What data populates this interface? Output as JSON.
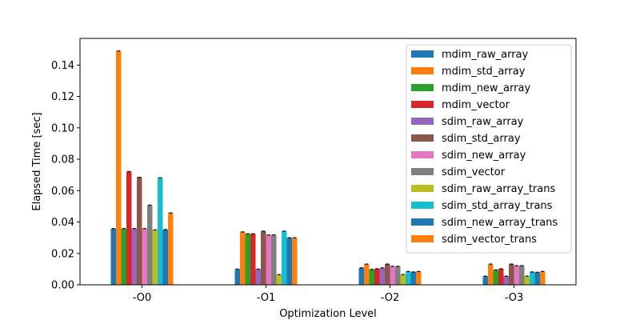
{
  "chart_data": {
    "type": "bar",
    "xlabel": "Optimization Level",
    "ylabel": "Elapsed Time [sec]",
    "categories": [
      "-O0",
      "-O1",
      "-O2",
      "-O3"
    ],
    "ylim": [
      0,
      0.157
    ],
    "yticks": [
      "0.00",
      "0.02",
      "0.04",
      "0.06",
      "0.08",
      "0.10",
      "0.12",
      "0.14"
    ],
    "grid": false,
    "legend_position": "top-right",
    "series": [
      {
        "name": "mdim_raw_array",
        "color": "#1f77b4",
        "values": [
          0.0358,
          0.01,
          0.0108,
          0.0055
        ]
      },
      {
        "name": "mdim_std_array",
        "color": "#ff7f0e",
        "values": [
          0.149,
          0.0337,
          0.0132,
          0.0132
        ]
      },
      {
        "name": "mdim_new_array",
        "color": "#2ca02c",
        "values": [
          0.0358,
          0.0325,
          0.0098,
          0.0095
        ]
      },
      {
        "name": "mdim_vector",
        "color": "#d62728",
        "values": [
          0.0722,
          0.0325,
          0.0102,
          0.0102
        ]
      },
      {
        "name": "sdim_raw_array",
        "color": "#9467bd",
        "values": [
          0.0358,
          0.01,
          0.0108,
          0.0055
        ]
      },
      {
        "name": "sdim_std_array",
        "color": "#8c564b",
        "values": [
          0.0685,
          0.0342,
          0.0132,
          0.0132
        ]
      },
      {
        "name": "sdim_new_array",
        "color": "#e377c2",
        "values": [
          0.0358,
          0.0318,
          0.0118,
          0.0122
        ]
      },
      {
        "name": "sdim_vector",
        "color": "#7f7f7f",
        "values": [
          0.0508,
          0.0318,
          0.0118,
          0.0122
        ]
      },
      {
        "name": "sdim_raw_array_trans",
        "color": "#bcbd22",
        "values": [
          0.035,
          0.0065,
          0.0065,
          0.0055
        ]
      },
      {
        "name": "sdim_std_array_trans",
        "color": "#17becf",
        "values": [
          0.0682,
          0.0342,
          0.0085,
          0.0082
        ]
      },
      {
        "name": "sdim_new_array_trans",
        "color": "#1f77b4",
        "values": [
          0.0352,
          0.03,
          0.0082,
          0.008
        ]
      },
      {
        "name": "sdim_vector_trans",
        "color": "#ff7f0e",
        "values": [
          0.0458,
          0.03,
          0.0085,
          0.0085
        ]
      }
    ]
  }
}
